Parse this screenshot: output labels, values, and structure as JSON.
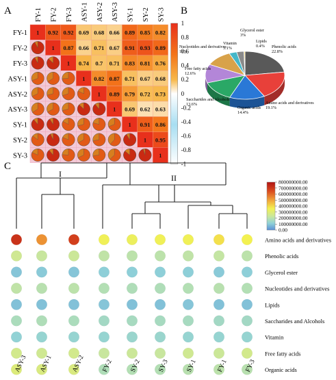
{
  "panel_labels": {
    "a": "A",
    "b": "B",
    "c": "C"
  },
  "colors": {
    "red": "#e8301c",
    "orange": "#f36b16",
    "heat_low": "#ffffff",
    "heat_mid_low": "#a8def2",
    "heat_mid": "#ffffff",
    "heat_high": "#f79a1a",
    "heat_top": "#e8301c",
    "pie_dark_red": "#8b1a1a",
    "pie_orange": "#f4a21e",
    "bubble_scale": [
      "#5b8fd6",
      "#8fd1d8",
      "#c7e6a0",
      "#f3f151",
      "#f1a53a",
      "#d9481e",
      "#b01313"
    ]
  },
  "chart_data": [
    {
      "type": "heatmap",
      "panel": "A",
      "labels": [
        "FY-1",
        "FY-2",
        "FY-3",
        "ASY-1",
        "ASY-2",
        "ASY-3",
        "SY-1",
        "SY-2",
        "SY-3"
      ],
      "matrix": [
        [
          1,
          0.92,
          0.92,
          0.69,
          0.68,
          0.66,
          0.89,
          0.85,
          0.82
        ],
        [
          0.92,
          1,
          0.87,
          0.66,
          0.71,
          0.67,
          0.91,
          0.93,
          0.89
        ],
        [
          0.92,
          0.87,
          1,
          0.74,
          0.7,
          0.71,
          0.83,
          0.81,
          0.76
        ],
        [
          0.69,
          0.66,
          0.74,
          1,
          0.82,
          0.87,
          0.71,
          0.67,
          0.68
        ],
        [
          0.68,
          0.71,
          0.7,
          0.82,
          1,
          0.89,
          0.79,
          0.72,
          0.73
        ],
        [
          0.66,
          0.67,
          0.71,
          0.87,
          0.89,
          1,
          0.69,
          0.62,
          0.63
        ],
        [
          0.89,
          0.91,
          0.83,
          0.71,
          0.79,
          0.69,
          1,
          0.91,
          0.86
        ],
        [
          0.85,
          0.93,
          0.81,
          0.67,
          0.72,
          0.62,
          0.91,
          1,
          0.95
        ],
        [
          0.82,
          0.89,
          0.76,
          0.68,
          0.73,
          0.63,
          0.86,
          0.95,
          1
        ]
      ],
      "colorbar_ticks": [
        "1",
        "0.8",
        "0.6",
        "0.4",
        "0.2",
        "0",
        "-0.2",
        "-0.4",
        "-0.6",
        "-0.8",
        "-1"
      ],
      "range": [
        -1,
        1
      ]
    },
    {
      "type": "pie",
      "panel": "B",
      "slices": [
        {
          "label": "Phenolic acids",
          "value": 22.8,
          "pct_text": "22.8%",
          "color": "#595959"
        },
        {
          "label": "Amino acids and derivatives",
          "value": 19.1,
          "pct_text": "19.1%",
          "color": "#e8403a"
        },
        {
          "label": "Organic acids",
          "value": 14.4,
          "pct_text": "14.4%",
          "color": "#2a78d6"
        },
        {
          "label": "Saccharides and Alcohols",
          "value": 13.6,
          "pct_text": "13.6%",
          "color": "#2aa866"
        },
        {
          "label": "Free fatty acids",
          "value": 12.6,
          "pct_text": "12.6%",
          "color": "#b386d8"
        },
        {
          "label": "Nucleotides and derivatives",
          "value": 11.0,
          "pct_text": "11%",
          "color": "#d8a24a"
        },
        {
          "label": "Vitamin",
          "value": 3.1,
          "pct_text": "3.1%",
          "color": "#45b7c9"
        },
        {
          "label": "Glycerol ester",
          "value": 3.0,
          "pct_text": "3%",
          "color": "#8a8a8a"
        },
        {
          "label": "Lipids",
          "value": 0.4,
          "pct_text": "0.4%",
          "color": "#f2c42e"
        }
      ]
    },
    {
      "type": "heatmap",
      "panel": "C",
      "samples": [
        "ASY-3",
        "ASY-1",
        "ASY-2",
        "FY-2",
        "SY-2",
        "SY-3",
        "SY-1",
        "FY-1",
        "FY-3"
      ],
      "clusters": [
        "I",
        "II"
      ],
      "rows": [
        "Amino acids and derivatives",
        "Phenolic acids",
        "Glycerol ester",
        "Nucleotides and derivatives",
        "Lipids",
        "Saccharides and Alcohols",
        "Vitamin",
        "Free fatty acids",
        "Organic acids"
      ],
      "values": [
        [
          720000000,
          560000000,
          690000000,
          390000000,
          380000000,
          390000000,
          390000000,
          430000000,
          400000000
        ],
        [
          290000000,
          270000000,
          280000000,
          250000000,
          240000000,
          240000000,
          250000000,
          260000000,
          240000000
        ],
        [
          110000000,
          120000000,
          110000000,
          130000000,
          130000000,
          130000000,
          130000000,
          120000000,
          130000000
        ],
        [
          250000000,
          230000000,
          240000000,
          220000000,
          210000000,
          210000000,
          220000000,
          230000000,
          220000000
        ],
        [
          100000000,
          100000000,
          100000000,
          110000000,
          100000000,
          100000000,
          110000000,
          100000000,
          100000000
        ],
        [
          200000000,
          210000000,
          200000000,
          180000000,
          190000000,
          190000000,
          190000000,
          180000000,
          180000000
        ],
        [
          140000000,
          150000000,
          150000000,
          150000000,
          160000000,
          160000000,
          150000000,
          150000000,
          150000000
        ],
        [
          300000000,
          290000000,
          300000000,
          270000000,
          280000000,
          270000000,
          290000000,
          280000000,
          300000000
        ],
        [
          330000000,
          320000000,
          320000000,
          210000000,
          220000000,
          220000000,
          230000000,
          240000000,
          230000000
        ]
      ],
      "colorbar_ticks": [
        "800000000.00",
        "700000000.00",
        "600000000.00",
        "500000000.00",
        "400000000.00",
        "300000000.00",
        "200000000.00",
        "100000000.00",
        "0.00"
      ],
      "range": [
        0,
        800000000
      ]
    }
  ]
}
